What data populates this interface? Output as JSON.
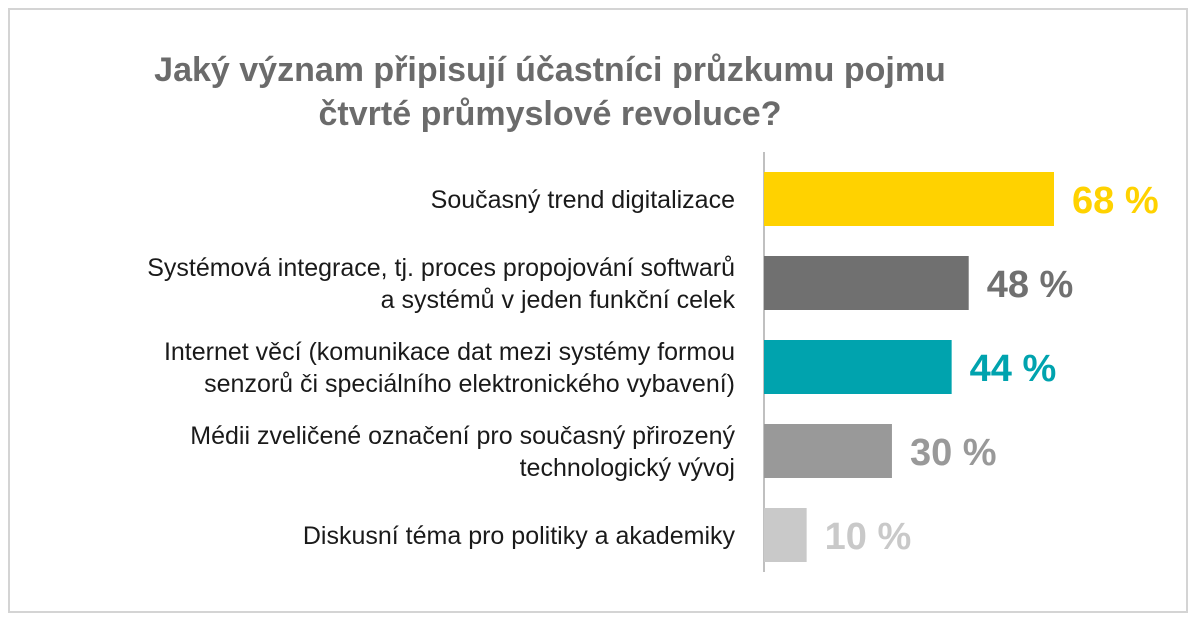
{
  "title_lines": [
    "Jaký význam připisují účastníci průzkumu pojmu",
    "čtvrté průmyslové revoluce?"
  ],
  "chart_data": {
    "type": "bar",
    "orientation": "horizontal",
    "title": "Jaký význam připisují účastníci průzkumu pojmu čtvrté průmyslové revoluce?",
    "categories": [
      [
        "Současný trend digitalizace"
      ],
      [
        "Systémová integrace, tj. proces propojování softwarů",
        "a systémů v jeden funkční celek"
      ],
      [
        "Internet věcí (komunikace dat mezi systémy formou",
        "senzorů či speciálního elektronického vybavení)"
      ],
      [
        "Médii zveličené označení pro současný přirozený",
        "technologický vývoj"
      ],
      [
        "Diskusní téma pro politiky a akademiky"
      ]
    ],
    "values": [
      68,
      48,
      44,
      30,
      10
    ],
    "value_labels": [
      "68 %",
      "48 %",
      "44 %",
      "30 %",
      "10 %"
    ],
    "colors": [
      "#ffd200",
      "#707070",
      "#00a3ae",
      "#999999",
      "#c9c9c9"
    ],
    "xlim": [
      0,
      100
    ],
    "grid": false,
    "legend": "none"
  }
}
